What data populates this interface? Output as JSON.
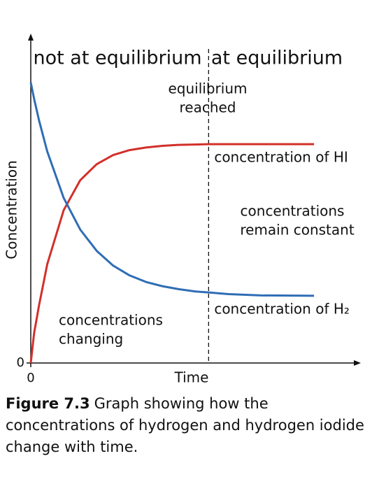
{
  "chart_data": {
    "type": "line",
    "x_label": "Time",
    "y_label": "Concentration",
    "x": [
      0,
      0.1,
      0.25,
      0.5,
      1,
      1.5,
      2,
      2.5,
      3,
      3.5,
      4,
      4.5,
      5,
      5.4,
      6,
      7,
      8.6
    ],
    "series": [
      {
        "name": "concentration of HI",
        "color": "#d2302a",
        "values": [
          0,
          0.9,
          1.75,
          3.01,
          4.66,
          5.57,
          6.06,
          6.34,
          6.49,
          6.57,
          6.62,
          6.65,
          6.66,
          6.67,
          6.67,
          6.67,
          6.67
        ]
      },
      {
        "name": "concentration of H₂",
        "color": "#2f6db5",
        "values": [
          8.55,
          8.06,
          7.4,
          6.45,
          5.03,
          4.07,
          3.42,
          2.97,
          2.67,
          2.47,
          2.34,
          2.25,
          2.18,
          2.15,
          2.1,
          2.06,
          2.05
        ]
      }
    ],
    "equilibrium_x": 5.4,
    "xlim": [
      0,
      10
    ],
    "ylim": [
      0,
      10
    ],
    "xticks": [
      0
    ],
    "yticks": [
      0
    ],
    "annotations": {
      "left_region": "not at equilibrium",
      "right_region": "at equilibrium",
      "marker": [
        "equilibrium",
        "reached"
      ],
      "right_note": [
        "concentrations",
        "remain constant"
      ],
      "left_note": [
        "concentrations",
        "changing"
      ]
    }
  },
  "caption": {
    "label": "Figure 7.3",
    "text": "Graph showing how the concentrations of hydrogen and hydrogen iodide change with time."
  }
}
